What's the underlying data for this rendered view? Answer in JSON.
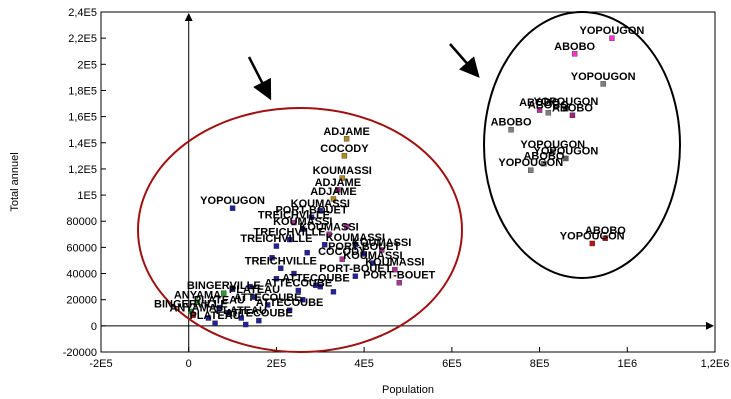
{
  "chart_data": {
    "type": "scatter",
    "title": "",
    "xlabel": "Population",
    "ylabel": "Total annuel",
    "xlim": [
      -200000,
      1200000
    ],
    "ylim": [
      -20000,
      240000
    ],
    "x_ticks": [
      "-2E5",
      "0",
      "2E5",
      "4E5",
      "6E5",
      "8E5",
      "1E6",
      "1,2E6"
    ],
    "y_ticks": [
      "-20000",
      "0",
      "20000",
      "40000",
      "60000",
      "80000",
      "1E5",
      "1,2E5",
      "1,4E5",
      "1,6E5",
      "1,8E5",
      "2E5",
      "2,2E5",
      "2,4E5"
    ],
    "grid": false,
    "colors": {
      "left_ellipse": "#a01010",
      "right_ellipse": "#000000",
      "axis": "#000000",
      "marker_blue": "#1f1f9f",
      "marker_magenta": "#b0309a",
      "marker_gold": "#b08a1a",
      "marker_gray": "#666666",
      "marker_red": "#c01010",
      "marker_green": "#2a9a2a"
    },
    "points": [
      {
        "x": 965000,
        "y": 220000,
        "label": "YOPOUGON",
        "color": "#ff33cc"
      },
      {
        "x": 880000,
        "y": 208000,
        "label": "ABOBO",
        "color": "#ff33cc"
      },
      {
        "x": 945000,
        "y": 185000,
        "label": "YOPOUGON",
        "color": "#808080"
      },
      {
        "x": 860000,
        "y": 166000,
        "label": "YOPOUGON",
        "color": "#2f2f2f"
      },
      {
        "x": 800000,
        "y": 165000,
        "label": "ABOBO",
        "color": "#b0309a"
      },
      {
        "x": 820000,
        "y": 163000,
        "label": "ABOBO",
        "color": "#808080"
      },
      {
        "x": 875000,
        "y": 161000,
        "label": "ABOBO",
        "color": "#a02080"
      },
      {
        "x": 735000,
        "y": 150000,
        "label": "ABOBO",
        "color": "#808080"
      },
      {
        "x": 830000,
        "y": 133000,
        "label": "YOPOUGON",
        "color": "#808080"
      },
      {
        "x": 860000,
        "y": 128000,
        "label": "YOPOUGON",
        "color": "#606060"
      },
      {
        "x": 810000,
        "y": 124000,
        "label": "ABOBO",
        "color": "#808080"
      },
      {
        "x": 780000,
        "y": 119000,
        "label": "YOPOUGON",
        "color": "#808080"
      },
      {
        "x": 950000,
        "y": 67000,
        "label": "ABOBO",
        "color": "#c01010"
      },
      {
        "x": 920000,
        "y": 63000,
        "label": "YOPOUGON",
        "color": "#c01010"
      },
      {
        "x": 360000,
        "y": 143000,
        "label": "ADJAME",
        "color": "#b08a1a"
      },
      {
        "x": 355000,
        "y": 130000,
        "label": "COCODY",
        "color": "#b08a1a"
      },
      {
        "x": 350000,
        "y": 113000,
        "label": "KOUMASSI",
        "color": "#b08a1a"
      },
      {
        "x": 340000,
        "y": 104000,
        "label": "ADJAME",
        "color": "#a02080"
      },
      {
        "x": 330000,
        "y": 97000,
        "label": "ADJAME",
        "color": "#b08a1a"
      },
      {
        "x": 100000,
        "y": 90000,
        "label": "YOPOUGON",
        "color": "#1f1f9f"
      },
      {
        "x": 300000,
        "y": 88000,
        "label": "KOUMASSI",
        "color": "#1f1f9f"
      },
      {
        "x": 280000,
        "y": 83000,
        "label": "PORT-BOUET",
        "color": "#1f1f9f"
      },
      {
        "x": 240000,
        "y": 79000,
        "label": "TREICHVILLE",
        "color": "#b0309a"
      },
      {
        "x": 260000,
        "y": 74000,
        "label": "KOUMASSI",
        "color": "#1f1f9f"
      },
      {
        "x": 320000,
        "y": 70000,
        "label": "KOUMASSI",
        "color": "#b0309a"
      },
      {
        "x": 230000,
        "y": 66000,
        "label": "TREICHVILLE",
        "color": "#1f1f9f"
      },
      {
        "x": 380000,
        "y": 62000,
        "label": "KOUMASSI",
        "color": "#1f1f9f"
      },
      {
        "x": 200000,
        "y": 61000,
        "label": "TREICHVILLE",
        "color": "#1f1f9f"
      },
      {
        "x": 440000,
        "y": 58000,
        "label": "KOUMASSI",
        "color": "#b0309a"
      },
      {
        "x": 400000,
        "y": 55000,
        "label": "PORT-BOUET",
        "color": "#1f1f9f"
      },
      {
        "x": 350000,
        "y": 51000,
        "label": "COCODY",
        "color": "#b0309a"
      },
      {
        "x": 420000,
        "y": 48000,
        "label": "KOUMASSI",
        "color": "#1f1f9f"
      },
      {
        "x": 470000,
        "y": 43000,
        "label": "KOUMASSI",
        "color": "#b0309a"
      },
      {
        "x": 210000,
        "y": 44000,
        "label": "TREICHVILLE",
        "color": "#1f1f9f"
      },
      {
        "x": 380000,
        "y": 38000,
        "label": "PORT-BOUET",
        "color": "#1f1f9f"
      },
      {
        "x": 480000,
        "y": 33000,
        "label": "PORT-BOUET",
        "color": "#b0309a"
      },
      {
        "x": 290000,
        "y": 31000,
        "label": "ATTECOUBE",
        "color": "#1f1f9f"
      },
      {
        "x": 250000,
        "y": 27000,
        "label": "ATTECOUBE",
        "color": "#1f1f9f"
      },
      {
        "x": 80000,
        "y": 25000,
        "label": "BINGERVILLE",
        "color": "#2a9a2a"
      },
      {
        "x": 150000,
        "y": 22000,
        "label": "PLATEAU",
        "color": "#1f1f9f"
      },
      {
        "x": 20000,
        "y": 18000,
        "label": "ANYAMA",
        "color": "#2a9a2a"
      },
      {
        "x": 70000,
        "y": 14000,
        "label": "PLATEAU",
        "color": "#1f1f9f"
      },
      {
        "x": 5000,
        "y": 11000,
        "label": "BINGERVILLE",
        "color": "#2a9a2a"
      },
      {
        "x": 10000,
        "y": 8000,
        "label": "ANYAMA",
        "color": "#c01010"
      },
      {
        "x": 120000,
        "y": 6000,
        "label": "PLATEAU",
        "color": "#1f1f9f"
      },
      {
        "x": 60000,
        "y": 2000,
        "label": "PLATEAU",
        "color": "#1f1f9f"
      },
      {
        "x": 160000,
        "y": 4000,
        "label": "ATTECOUBE",
        "color": "#1f1f9f"
      },
      {
        "x": 230000,
        "y": 12000,
        "label": "ATTECOUBE",
        "color": "#1f1f9f"
      },
      {
        "x": 180000,
        "y": 16000,
        "label": "ATTECOUBE",
        "color": "#1f1f9f"
      },
      {
        "x": 300000,
        "y": 30000,
        "label": "",
        "color": "#1f1f9f"
      },
      {
        "x": 330000,
        "y": 26000,
        "label": "",
        "color": "#1f1f9f"
      },
      {
        "x": 200000,
        "y": 36000,
        "label": "",
        "color": "#1f1f9f"
      },
      {
        "x": 190000,
        "y": 52000,
        "label": "",
        "color": "#1f1f9f"
      },
      {
        "x": 270000,
        "y": 56000,
        "label": "",
        "color": "#1f1f9f"
      },
      {
        "x": 310000,
        "y": 62000,
        "label": "",
        "color": "#1f1f9f"
      },
      {
        "x": 360000,
        "y": 76000,
        "label": "",
        "color": "#b0309a"
      },
      {
        "x": 240000,
        "y": 40000,
        "label": "",
        "color": "#1f1f9f"
      },
      {
        "x": 260000,
        "y": 20000,
        "label": "",
        "color": "#1f1f9f"
      },
      {
        "x": 90000,
        "y": 10000,
        "label": "",
        "color": "#1f1f9f"
      },
      {
        "x": 140000,
        "y": 30000,
        "label": "",
        "color": "#1f1f9f"
      },
      {
        "x": 100000,
        "y": 28000,
        "label": "",
        "color": "#1f1f9f"
      },
      {
        "x": 45000,
        "y": 6000,
        "label": "",
        "color": "#1f1f9f"
      },
      {
        "x": 130000,
        "y": 1000,
        "label": "",
        "color": "#1f1f9f"
      }
    ]
  }
}
